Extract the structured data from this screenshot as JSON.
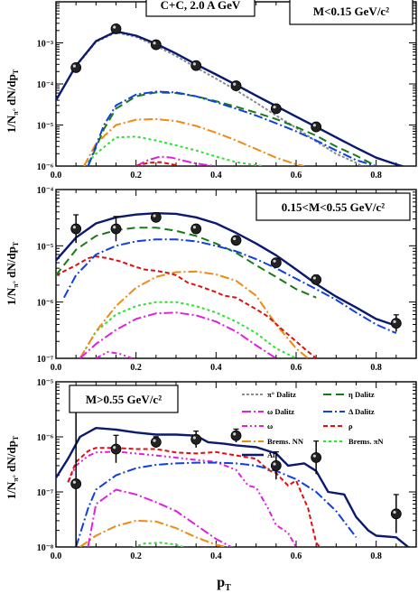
{
  "figure": {
    "xlabel": "p",
    "xlabel_sub": "T",
    "ylabel": "1/N",
    "ylabel_sub": "π°",
    "ylabel_rest": " dN/dp",
    "ylabel_sub2": "T"
  },
  "legend": [
    {
      "key": "pi0",
      "label": "π° Dalitz",
      "color": "#8c8c8c",
      "dash": "3,2"
    },
    {
      "key": "eta",
      "label": "η Dalitz",
      "color": "#1a7a1a",
      "dash": "9,5"
    },
    {
      "key": "omega_d",
      "label": "ω Dalitz",
      "color": "#e020e0",
      "dash": "10,3,2,3"
    },
    {
      "key": "delta",
      "label": "Δ Dalitz",
      "color": "#1040e0",
      "dash": "10,3,2,3"
    },
    {
      "key": "omega",
      "label": "ω",
      "color": "#e020e0",
      "dash": "6,3,2,3,2,3"
    },
    {
      "key": "rho",
      "label": "ρ",
      "color": "#e01010",
      "dash": "5,3"
    },
    {
      "key": "brems_nn",
      "label": "Brems. NN",
      "color": "#f08a10",
      "dash": "10,3,2,3"
    },
    {
      "key": "brems_pin",
      "label": "Brems. πN",
      "color": "#30e030",
      "dash": "3,3"
    },
    {
      "key": "all",
      "label": "All",
      "color": "#0a1a6e",
      "dash": ""
    }
  ],
  "chart_data": [
    {
      "type": "line",
      "panel": 1,
      "box_label": "M<0.15 GeV/c²",
      "title": "C+C, 2.0 A GeV",
      "xlim": [
        0,
        0.9
      ],
      "ylim_exp": [
        -6,
        -2
      ],
      "yscale": "log",
      "ytick_labels": [
        "10⁻⁶",
        "10⁻⁵",
        "10⁻⁴",
        "10⁻³"
      ],
      "xtick_labels": [
        "0.0",
        "0.2",
        "0.4",
        "0.6",
        "0.8"
      ],
      "data_points": [
        {
          "x": 0.05,
          "y": 0.00025,
          "err": 0
        },
        {
          "x": 0.15,
          "y": 0.0022,
          "err": 0
        },
        {
          "x": 0.25,
          "y": 0.0009,
          "err": 0
        },
        {
          "x": 0.35,
          "y": 0.00028,
          "err": 0
        },
        {
          "x": 0.45,
          "y": 9e-05,
          "err": 0
        },
        {
          "x": 0.55,
          "y": 2.5e-05,
          "err": 0
        },
        {
          "x": 0.65,
          "y": 9e-06,
          "err": 0
        }
      ],
      "series": [
        {
          "key": "all",
          "x": [
            0.0,
            0.05,
            0.1,
            0.15,
            0.2,
            0.25,
            0.3,
            0.35,
            0.4,
            0.45,
            0.5,
            0.55,
            0.6,
            0.65,
            0.7,
            0.75,
            0.8,
            0.85,
            0.9
          ],
          "y": [
            4e-05,
            0.00028,
            0.0011,
            0.0019,
            0.0015,
            0.00095,
            0.00055,
            0.0003,
            0.00017,
            9.5e-05,
            5.2e-05,
            2.9e-05,
            1.6e-05,
            9e-06,
            5e-06,
            2.8e-06,
            1.6e-06,
            1.1e-06,
            8e-07
          ]
        },
        {
          "key": "pi0",
          "x": [
            0.0,
            0.05,
            0.1,
            0.15,
            0.2,
            0.25,
            0.3,
            0.35,
            0.4,
            0.45,
            0.5,
            0.55,
            0.6,
            0.65,
            0.7,
            0.75,
            0.8
          ],
          "y": [
            4e-05,
            0.00027,
            0.00105,
            0.0018,
            0.0014,
            0.00085,
            0.00048,
            0.00025,
            0.000135,
            7e-05,
            3.5e-05,
            1.7e-05,
            8.5e-06,
            4e-06,
            2e-06,
            1.2e-06,
            6e-07
          ]
        },
        {
          "key": "eta",
          "x": [
            0.08,
            0.12,
            0.15,
            0.2,
            0.25,
            0.3,
            0.35,
            0.4,
            0.45,
            0.5,
            0.55,
            0.6,
            0.65,
            0.7,
            0.75,
            0.8
          ],
          "y": [
            1e-06,
            8e-06,
            2.5e-05,
            5e-05,
            6.2e-05,
            6e-05,
            5e-05,
            3.8e-05,
            2.8e-05,
            2e-05,
            1.4e-05,
            9e-06,
            5.5e-06,
            3e-06,
            1.8e-06,
            1e-06
          ]
        },
        {
          "key": "delta",
          "x": [
            0.08,
            0.12,
            0.15,
            0.2,
            0.25,
            0.3,
            0.35,
            0.4,
            0.45,
            0.5,
            0.55,
            0.6,
            0.65,
            0.7,
            0.75,
            0.8
          ],
          "y": [
            1e-06,
            1e-05,
            3e-05,
            5.5e-05,
            6.5e-05,
            6.2e-05,
            5e-05,
            3.6e-05,
            2.5e-05,
            1.7e-05,
            1.1e-05,
            7e-06,
            4.2e-06,
            2.4e-06,
            1.4e-06,
            1e-06
          ]
        },
        {
          "key": "brems_nn",
          "x": [
            0.07,
            0.1,
            0.15,
            0.2,
            0.25,
            0.3,
            0.35,
            0.4,
            0.45,
            0.5,
            0.55,
            0.6,
            0.62
          ],
          "y": [
            1e-06,
            3.5e-06,
            1e-05,
            1.35e-05,
            1.4e-05,
            1.25e-05,
            9.5e-06,
            6.5e-06,
            4.2e-06,
            2.6e-06,
            1.6e-06,
            1.1e-06,
            1e-06
          ]
        },
        {
          "key": "brems_pin",
          "x": [
            0.07,
            0.1,
            0.15,
            0.2,
            0.25,
            0.3,
            0.35,
            0.4,
            0.45,
            0.5,
            0.52
          ],
          "y": [
            1e-06,
            2e-06,
            5e-06,
            5.2e-06,
            4.2e-06,
            3.2e-06,
            2.4e-06,
            1.7e-06,
            1.25e-06,
            1.05e-06,
            1e-06
          ]
        },
        {
          "key": "omega_d",
          "x": [
            0.2,
            0.23,
            0.26,
            0.29,
            0.32,
            0.35,
            0.38,
            0.4
          ],
          "y": [
            1e-06,
            1.4e-06,
            1.7e-06,
            1.6e-06,
            1.35e-06,
            1.15e-06,
            1.05e-06,
            1e-06
          ]
        },
        {
          "key": "rho",
          "x": [
            0.2,
            0.23,
            0.26,
            0.29,
            0.31
          ],
          "y": [
            1e-06,
            1.2e-06,
            1.25e-06,
            1.1e-06,
            1e-06
          ]
        }
      ]
    },
    {
      "type": "line",
      "panel": 2,
      "box_label": "0.15<M<0.55 GeV/c²",
      "xlim": [
        0,
        0.9
      ],
      "ylim_exp": [
        -7,
        -4
      ],
      "yscale": "log",
      "ytick_labels": [
        "10⁻⁷",
        "10⁻⁶",
        "10⁻⁵",
        "10⁻⁴"
      ],
      "xtick_labels": [
        "0.0",
        "0.2",
        "0.4",
        "0.6",
        "0.8"
      ],
      "data_points": [
        {
          "x": 0.05,
          "y": 2e-05,
          "err": 0.25
        },
        {
          "x": 0.15,
          "y": 2e-05,
          "err": 0.22
        },
        {
          "x": 0.25,
          "y": 3.2e-05,
          "err": 0.08
        },
        {
          "x": 0.35,
          "y": 2e-05,
          "err": 0.05
        },
        {
          "x": 0.45,
          "y": 1.25e-05,
          "err": 0.05
        },
        {
          "x": 0.55,
          "y": 5e-06,
          "err": 0.06
        },
        {
          "x": 0.65,
          "y": 2.5e-06,
          "err": 0.08
        },
        {
          "x": 0.85,
          "y": 4.2e-07,
          "err": 0.15
        }
      ],
      "series": [
        {
          "key": "all",
          "x": [
            0.0,
            0.05,
            0.1,
            0.15,
            0.2,
            0.25,
            0.3,
            0.35,
            0.4,
            0.45,
            0.5,
            0.55,
            0.6,
            0.65,
            0.7,
            0.75,
            0.8,
            0.85
          ],
          "y": [
            5.5e-06,
            1.4e-05,
            2.5e-05,
            3.2e-05,
            3.6e-05,
            3.8e-05,
            3.7e-05,
            3.2e-05,
            2.5e-05,
            1.7e-05,
            1.1e-05,
            6.8e-06,
            3.8e-06,
            2.1e-06,
            1.25e-06,
            8e-07,
            5e-07,
            3.8e-07
          ]
        },
        {
          "key": "eta",
          "x": [
            0.0,
            0.05,
            0.1,
            0.15,
            0.2,
            0.25,
            0.3,
            0.35,
            0.4,
            0.45,
            0.5,
            0.55,
            0.6,
            0.65
          ],
          "y": [
            3e-06,
            8.5e-06,
            1.5e-05,
            1.9e-05,
            2.1e-05,
            2.1e-05,
            1.85e-05,
            1.5e-05,
            1.1e-05,
            7.5e-06,
            4.5e-06,
            2.8e-06,
            1.7e-06,
            1.2e-06
          ]
        },
        {
          "key": "delta",
          "x": [
            0.02,
            0.05,
            0.1,
            0.15,
            0.2,
            0.25,
            0.3,
            0.35,
            0.4,
            0.45,
            0.5,
            0.55,
            0.6,
            0.65,
            0.7,
            0.75,
            0.8,
            0.85
          ],
          "y": [
            1.2e-06,
            3e-06,
            7e-06,
            1e-05,
            1.2e-05,
            1.3e-05,
            1.3e-05,
            1.2e-05,
            1e-05,
            8e-06,
            5.8e-06,
            4e-06,
            2.6e-06,
            1.7e-06,
            1.1e-06,
            6.5e-07,
            4e-07,
            2.8e-07
          ]
        },
        {
          "key": "rho",
          "x": [
            0.0,
            0.05,
            0.08,
            0.1,
            0.13,
            0.16,
            0.2,
            0.22,
            0.25,
            0.28,
            0.3,
            0.33,
            0.36,
            0.4,
            0.42,
            0.45,
            0.48,
            0.5,
            0.53,
            0.56,
            0.6,
            0.62,
            0.65
          ],
          "y": [
            3e-06,
            4.5e-06,
            6e-06,
            6.5e-06,
            6e-06,
            5.3e-06,
            4.2e-06,
            3.8e-06,
            3.6e-06,
            3.3e-06,
            3e-06,
            2.2e-06,
            1.9e-06,
            1.5e-06,
            1.3e-06,
            1.2e-06,
            9e-07,
            7.5e-07,
            5.5e-07,
            3.5e-07,
            2e-07,
            1.5e-07,
            1e-07
          ]
        },
        {
          "key": "brems_nn",
          "x": [
            0.06,
            0.1,
            0.15,
            0.2,
            0.25,
            0.3,
            0.35,
            0.4,
            0.45,
            0.5,
            0.55,
            0.6,
            0.63
          ],
          "y": [
            1e-07,
            3e-07,
            8.5e-07,
            1.8e-06,
            2.8e-06,
            3.4e-06,
            3.5e-06,
            3.1e-06,
            2.4e-06,
            1.3e-06,
            4e-07,
            1.5e-07,
            1e-07
          ]
        },
        {
          "key": "brems_pin",
          "x": [
            0.06,
            0.1,
            0.15,
            0.2,
            0.25,
            0.3,
            0.35,
            0.4,
            0.45,
            0.5,
            0.55,
            0.6
          ],
          "y": [
            1e-07,
            3e-07,
            6e-07,
            8.5e-07,
            1e-06,
            1e-06,
            8.5e-07,
            6.5e-07,
            4.5e-07,
            2.8e-07,
            1.5e-07,
            1e-07
          ]
        },
        {
          "key": "omega_d",
          "x": [
            0.06,
            0.1,
            0.15,
            0.2,
            0.25,
            0.3,
            0.35,
            0.4,
            0.45,
            0.5,
            0.55
          ],
          "y": [
            1e-07,
            1.8e-07,
            3.2e-07,
            5e-07,
            6.3e-07,
            6.5e-07,
            5.8e-07,
            4.5e-07,
            3e-07,
            1.7e-07,
            1e-07
          ]
        },
        {
          "key": "omega",
          "x": [
            0.1,
            0.13,
            0.16,
            0.19
          ],
          "y": [
            1e-07,
            1.3e-07,
            1.2e-07,
            1e-07
          ]
        }
      ]
    },
    {
      "type": "line",
      "panel": 3,
      "box_label": "M>0.55 GeV/c²",
      "xlim": [
        0,
        0.9
      ],
      "ylim_exp": [
        -8,
        -5
      ],
      "yscale": "log",
      "ytick_labels": [
        "10⁻⁸",
        "10⁻⁷",
        "10⁻⁶",
        "10⁻⁵"
      ],
      "xtick_labels": [
        "0.0",
        "0.2",
        "0.4",
        "0.6",
        "0.8"
      ],
      "data_points": [
        {
          "x": 0.05,
          "y": 1.4e-07,
          "err": 1.5
        },
        {
          "x": 0.15,
          "y": 6e-07,
          "err": 0.25
        },
        {
          "x": 0.25,
          "y": 8e-07,
          "err": 0.1
        },
        {
          "x": 0.35,
          "y": 9e-07,
          "err": 0.15
        },
        {
          "x": 0.45,
          "y": 1.05e-06,
          "err": 0.12
        },
        {
          "x": 0.55,
          "y": 3e-07,
          "err": 0.25
        },
        {
          "x": 0.65,
          "y": 4.2e-07,
          "err": 0.3
        },
        {
          "x": 0.85,
          "y": 4e-08,
          "err": 0.35
        }
      ],
      "series": [
        {
          "key": "all",
          "x": [
            0.0,
            0.03,
            0.06,
            0.1,
            0.15,
            0.2,
            0.25,
            0.3,
            0.35,
            0.38,
            0.42,
            0.45,
            0.5,
            0.55,
            0.58,
            0.62,
            0.65,
            0.68,
            0.72,
            0.75,
            0.78,
            0.8,
            0.85,
            0.88,
            0.9
          ],
          "y": [
            1.8e-07,
            4e-07,
            1e-06,
            1.45e-06,
            1.35e-06,
            1.2e-06,
            1.1e-06,
            1.1e-06,
            1.05e-06,
            8e-07,
            7.5e-07,
            7e-07,
            6.5e-07,
            5e-07,
            3e-07,
            3.3e-07,
            2.4e-07,
            1e-07,
            9e-08,
            3.5e-08,
            2e-08,
            1.6e-08,
            1.5e-08,
            1e-08,
            9e-09
          ]
        },
        {
          "key": "delta",
          "x": [
            0.05,
            0.08,
            0.1,
            0.15,
            0.2,
            0.25,
            0.3,
            0.35,
            0.4,
            0.45,
            0.5,
            0.55,
            0.6,
            0.65,
            0.7,
            0.75
          ],
          "y": [
            1e-08,
            5e-08,
            1.1e-07,
            2e-07,
            2.7e-07,
            3.1e-07,
            3.3e-07,
            3.4e-07,
            3.4e-07,
            3.3e-07,
            3e-07,
            2.4e-07,
            1.7e-07,
            1e-07,
            4.5e-08,
            1.5e-08
          ]
        },
        {
          "key": "rho",
          "x": [
            0.03,
            0.05,
            0.08,
            0.1,
            0.15,
            0.2,
            0.25,
            0.3,
            0.35,
            0.4,
            0.45,
            0.5,
            0.53,
            0.55,
            0.58,
            0.6,
            0.63,
            0.65,
            0.67
          ],
          "y": [
            1.5e-07,
            3.5e-07,
            5.5e-07,
            6.3e-07,
            6.3e-07,
            6e-07,
            6e-07,
            5.2e-07,
            5e-07,
            5.3e-07,
            4.6e-07,
            4e-07,
            2.5e-07,
            2.2e-07,
            1.3e-07,
            1.6e-07,
            5e-08,
            1.2e-08,
            8e-09
          ]
        },
        {
          "key": "omega",
          "x": [
            0.03,
            0.05,
            0.08,
            0.1,
            0.15,
            0.2,
            0.25,
            0.3,
            0.35,
            0.4,
            0.45,
            0.48,
            0.5,
            0.53,
            0.55,
            0.58,
            0.6,
            0.62
          ],
          "y": [
            1.5e-07,
            3e-07,
            4.5e-07,
            5.2e-07,
            5.4e-07,
            5e-07,
            4.6e-07,
            4.2e-07,
            3.8e-07,
            3.5e-07,
            2.5e-07,
            1.3e-07,
            1.2e-07,
            5e-08,
            2.5e-08,
            1.8e-08,
            1e-08,
            8e-09
          ]
        },
        {
          "key": "omega_d",
          "x": [
            0.08,
            0.1,
            0.15,
            0.2,
            0.25,
            0.3,
            0.35,
            0.4,
            0.45
          ],
          "y": [
            1e-08,
            6e-08,
            1.1e-07,
            9e-08,
            6.5e-08,
            4.5e-08,
            2.5e-08,
            1.4e-08,
            9e-09
          ]
        },
        {
          "key": "brems_nn",
          "x": [
            0.06,
            0.1,
            0.15,
            0.2,
            0.25,
            0.3,
            0.35,
            0.4,
            0.45
          ],
          "y": [
            1e-08,
            1.6e-08,
            2.4e-08,
            3e-08,
            2.9e-08,
            2.2e-08,
            1.5e-08,
            1.1e-08,
            9e-09
          ]
        },
        {
          "key": "brems_pin",
          "x": [
            0.18,
            0.22,
            0.26,
            0.3,
            0.34
          ],
          "y": [
            9e-09,
            1.15e-08,
            1.2e-08,
            1.1e-08,
            9e-09
          ]
        }
      ]
    }
  ]
}
